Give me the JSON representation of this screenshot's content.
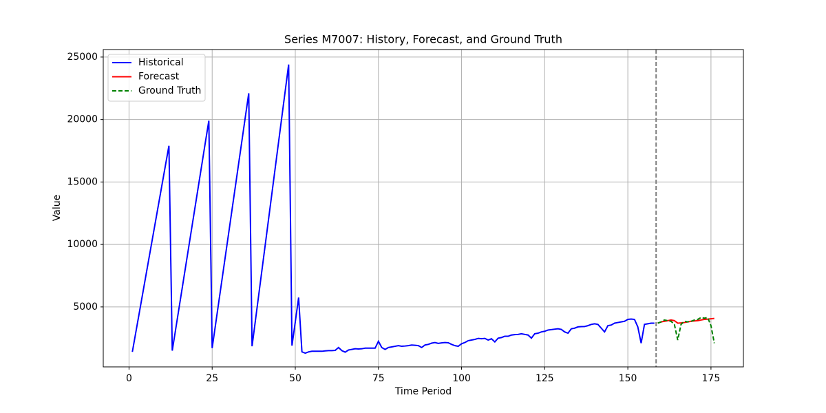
{
  "chart_data": {
    "type": "line",
    "title": "Series M7007: History, Forecast, and Ground Truth",
    "x_label": "Time Period",
    "y_label": "Value",
    "xlim": [
      -7.75,
      184.75
    ],
    "ylim": [
      200,
      25600
    ],
    "xticks": [
      0,
      25,
      50,
      75,
      100,
      125,
      150,
      175
    ],
    "yticks": [
      5000,
      10000,
      15000,
      20000,
      25000
    ],
    "grid": true,
    "legend": "upper left",
    "vline": {
      "x": 158.5,
      "color": "#808080",
      "linestyle": "dashed"
    },
    "series": [
      {
        "name": "Historical",
        "color": "#0000ff",
        "linestyle": "solid",
        "x": [
          1,
          2,
          3,
          4,
          5,
          6,
          7,
          8,
          9,
          10,
          11,
          12,
          13,
          14,
          15,
          16,
          17,
          18,
          19,
          20,
          21,
          22,
          23,
          24,
          25,
          26,
          27,
          28,
          29,
          30,
          31,
          32,
          33,
          34,
          35,
          36,
          37,
          38,
          39,
          40,
          41,
          42,
          43,
          44,
          45,
          46,
          47,
          48,
          49,
          50,
          51,
          52,
          53,
          54,
          55,
          56,
          57,
          58,
          59,
          60,
          61,
          62,
          63,
          64,
          65,
          66,
          67,
          68,
          69,
          70,
          71,
          72,
          73,
          74,
          75,
          76,
          77,
          78,
          79,
          80,
          81,
          82,
          83,
          84,
          85,
          86,
          87,
          88,
          89,
          90,
          91,
          92,
          93,
          94,
          95,
          96,
          97,
          98,
          99,
          100,
          101,
          102,
          103,
          104,
          105,
          106,
          107,
          108,
          109,
          110,
          111,
          112,
          113,
          114,
          115,
          116,
          117,
          118,
          119,
          120,
          121,
          122,
          123,
          124,
          125,
          126,
          127,
          128,
          129,
          130,
          131,
          132,
          133,
          134,
          135,
          136,
          137,
          138,
          139,
          140,
          141,
          142,
          143,
          144,
          145,
          146,
          147,
          148,
          149,
          150,
          151,
          152,
          153,
          154,
          155,
          156,
          157,
          158
        ],
        "values": [
          1400,
          2900,
          4400,
          5900,
          7400,
          8900,
          10400,
          11900,
          13400,
          14900,
          16400,
          17900,
          1500,
          3170,
          4850,
          6520,
          8200,
          9870,
          11550,
          13220,
          14900,
          16570,
          18250,
          19900,
          1700,
          3550,
          5410,
          7260,
          9120,
          10970,
          12830,
          14680,
          16540,
          18390,
          20250,
          22100,
          1850,
          3900,
          5950,
          8000,
          10050,
          12100,
          14150,
          16200,
          18250,
          20300,
          22350,
          24400,
          1900,
          3800,
          5750,
          1400,
          1300,
          1400,
          1450,
          1450,
          1450,
          1450,
          1480,
          1500,
          1500,
          1520,
          1750,
          1500,
          1380,
          1550,
          1600,
          1650,
          1630,
          1650,
          1700,
          1700,
          1700,
          1700,
          2250,
          1750,
          1600,
          1750,
          1800,
          1850,
          1900,
          1850,
          1870,
          1900,
          1950,
          1930,
          1900,
          1750,
          1950,
          2000,
          2100,
          2150,
          2080,
          2120,
          2150,
          2130,
          2000,
          1900,
          1850,
          2050,
          2150,
          2300,
          2350,
          2400,
          2480,
          2450,
          2480,
          2350,
          2450,
          2200,
          2500,
          2550,
          2650,
          2650,
          2750,
          2780,
          2800,
          2850,
          2800,
          2750,
          2500,
          2850,
          2900,
          3000,
          3050,
          3150,
          3180,
          3220,
          3250,
          3200,
          3000,
          2900,
          3250,
          3300,
          3400,
          3420,
          3430,
          3500,
          3600,
          3650,
          3600,
          3300,
          3000,
          3500,
          3550,
          3700,
          3750,
          3800,
          3850,
          4000,
          4030,
          4000,
          3400,
          2100,
          3600,
          3650,
          3700,
          3700
        ]
      },
      {
        "name": "Forecast",
        "color": "#ff0000",
        "linestyle": "solid",
        "x": [
          159,
          160,
          161,
          162,
          163,
          164,
          165,
          166,
          167,
          168,
          169,
          170,
          171,
          172,
          173,
          174,
          175,
          176
        ],
        "values": [
          3700,
          3800,
          3850,
          3900,
          3950,
          3900,
          3700,
          3720,
          3750,
          3800,
          3850,
          3880,
          3900,
          3950,
          4000,
          4020,
          4050,
          4080
        ]
      },
      {
        "name": "Ground Truth",
        "color": "#008000",
        "linestyle": "dashed",
        "x": [
          159,
          160,
          161,
          162,
          163,
          164,
          165,
          166,
          167,
          168,
          169,
          170,
          171,
          172,
          173,
          174,
          175,
          176
        ],
        "values": [
          3700,
          3800,
          3950,
          3900,
          3850,
          3600,
          2350,
          3600,
          3850,
          3800,
          3850,
          3950,
          4000,
          4150,
          4100,
          4150,
          3500,
          2100
        ]
      }
    ]
  }
}
